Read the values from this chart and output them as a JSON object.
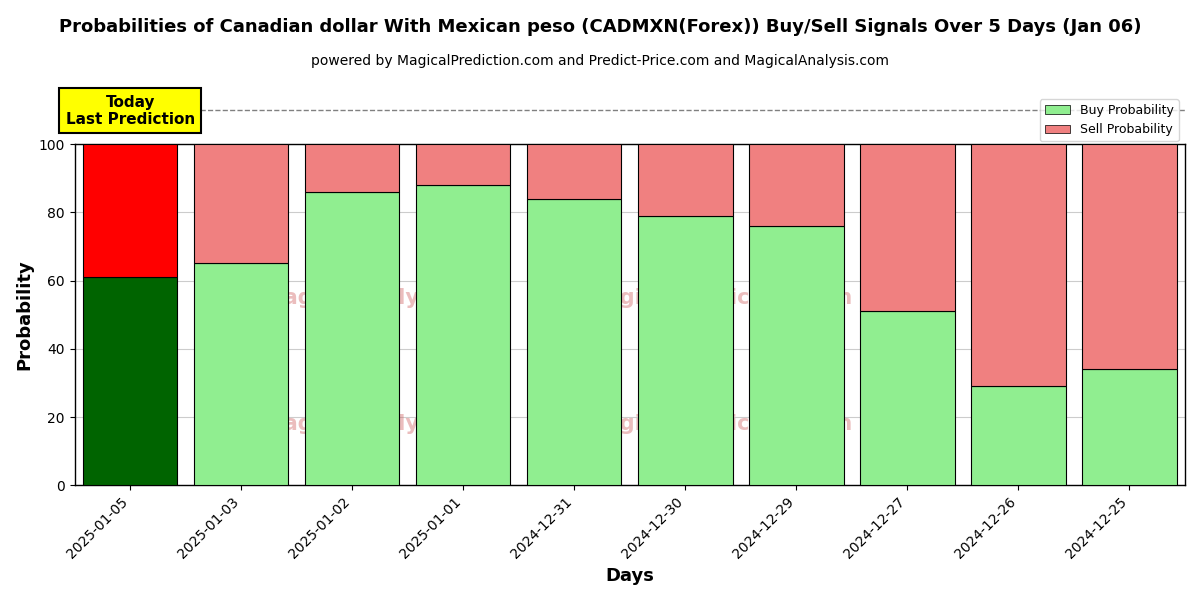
{
  "title": "Probabilities of Canadian dollar With Mexican peso (CADMXN(Forex)) Buy/Sell Signals Over 5 Days (Jan 06)",
  "subtitle": "powered by MagicalPrediction.com and Predict-Price.com and MagicalAnalysis.com",
  "xlabel": "Days",
  "ylabel": "Probability",
  "categories": [
    "2025-01-05",
    "2025-01-03",
    "2025-01-02",
    "2025-01-01",
    "2024-12-31",
    "2024-12-30",
    "2024-12-29",
    "2024-12-27",
    "2024-12-26",
    "2024-12-25"
  ],
  "buy_values": [
    61,
    65,
    86,
    88,
    84,
    79,
    76,
    51,
    29,
    34
  ],
  "sell_values": [
    39,
    35,
    14,
    12,
    16,
    21,
    24,
    49,
    71,
    66
  ],
  "buy_colors": [
    "#006400",
    "#90EE90",
    "#90EE90",
    "#90EE90",
    "#90EE90",
    "#90EE90",
    "#90EE90",
    "#90EE90",
    "#90EE90",
    "#90EE90"
  ],
  "sell_colors": [
    "#FF0000",
    "#F08080",
    "#F08080",
    "#F08080",
    "#F08080",
    "#F08080",
    "#F08080",
    "#F08080",
    "#F08080",
    "#F08080"
  ],
  "ylim": [
    0,
    100
  ],
  "yticks": [
    0,
    20,
    40,
    60,
    80,
    100
  ],
  "dashed_line_y": 110,
  "legend_buy_color": "#90EE90",
  "legend_sell_color": "#F08080",
  "today_box_color": "#FFFF00",
  "today_label": "Today\nLast Prediction",
  "background_color": "#ffffff",
  "grid_color": "#cccccc"
}
